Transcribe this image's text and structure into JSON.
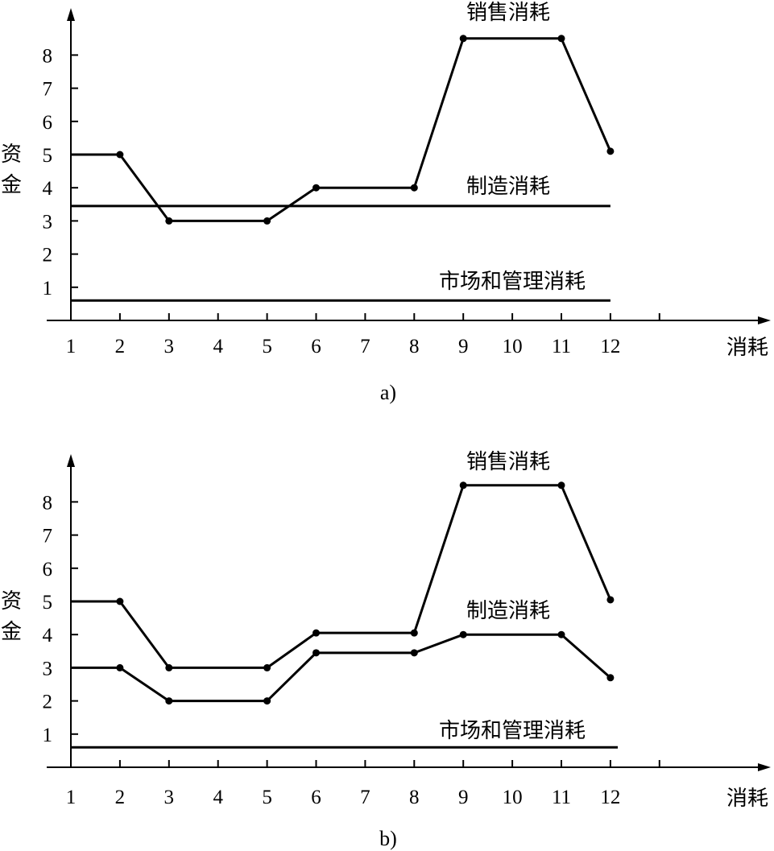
{
  "chart_data": [
    {
      "type": "line",
      "panel_label": "a)",
      "ylabel": "资金",
      "xlabel": "消耗",
      "y_ticks": [
        1,
        2,
        3,
        4,
        5,
        6,
        7,
        8
      ],
      "x_ticks": [
        "1",
        "2",
        "3",
        "4",
        "5",
        "6",
        "7",
        "8",
        "9",
        "10",
        "11",
        "12"
      ],
      "xlim": [
        1,
        13
      ],
      "ylim": [
        0,
        9
      ],
      "grid": false,
      "series": [
        {
          "name": "销售消耗",
          "markers": true,
          "x": [
            1,
            2,
            3,
            5,
            6,
            8,
            9,
            11,
            12
          ],
          "y": [
            5,
            5,
            3,
            3,
            4,
            4,
            8.5,
            8.5,
            5.1
          ]
        },
        {
          "name": "制造消耗",
          "markers": false,
          "x": [
            1,
            12
          ],
          "y": [
            3.45,
            3.45
          ]
        },
        {
          "name": "市场和管理消耗",
          "markers": false,
          "x": [
            1,
            12
          ],
          "y": [
            0.6,
            0.6
          ]
        }
      ]
    },
    {
      "type": "line",
      "panel_label": "b)",
      "ylabel": "资金",
      "xlabel": "消耗",
      "y_ticks": [
        1,
        2,
        3,
        4,
        5,
        6,
        7,
        8
      ],
      "x_ticks": [
        "1",
        "2",
        "3",
        "4",
        "5",
        "6",
        "7",
        "8",
        "9",
        "10",
        "11",
        "12"
      ],
      "xlim": [
        1,
        13
      ],
      "ylim": [
        0,
        9
      ],
      "grid": false,
      "series": [
        {
          "name": "销售消耗",
          "markers": true,
          "x": [
            1,
            2,
            3,
            5,
            6,
            8,
            9,
            11,
            12
          ],
          "y": [
            5,
            5,
            3,
            3,
            4.05,
            4.05,
            8.5,
            8.5,
            5.05
          ]
        },
        {
          "name": "制造消耗",
          "markers": true,
          "x": [
            1,
            2,
            3,
            5,
            6,
            8,
            9,
            11,
            12
          ],
          "y": [
            3,
            3,
            2,
            2,
            3.45,
            3.45,
            4,
            4,
            2.7
          ]
        },
        {
          "name": "市场和管理消耗",
          "markers": false,
          "x": [
            1,
            12.15
          ],
          "y": [
            0.6,
            0.6
          ]
        }
      ]
    }
  ]
}
